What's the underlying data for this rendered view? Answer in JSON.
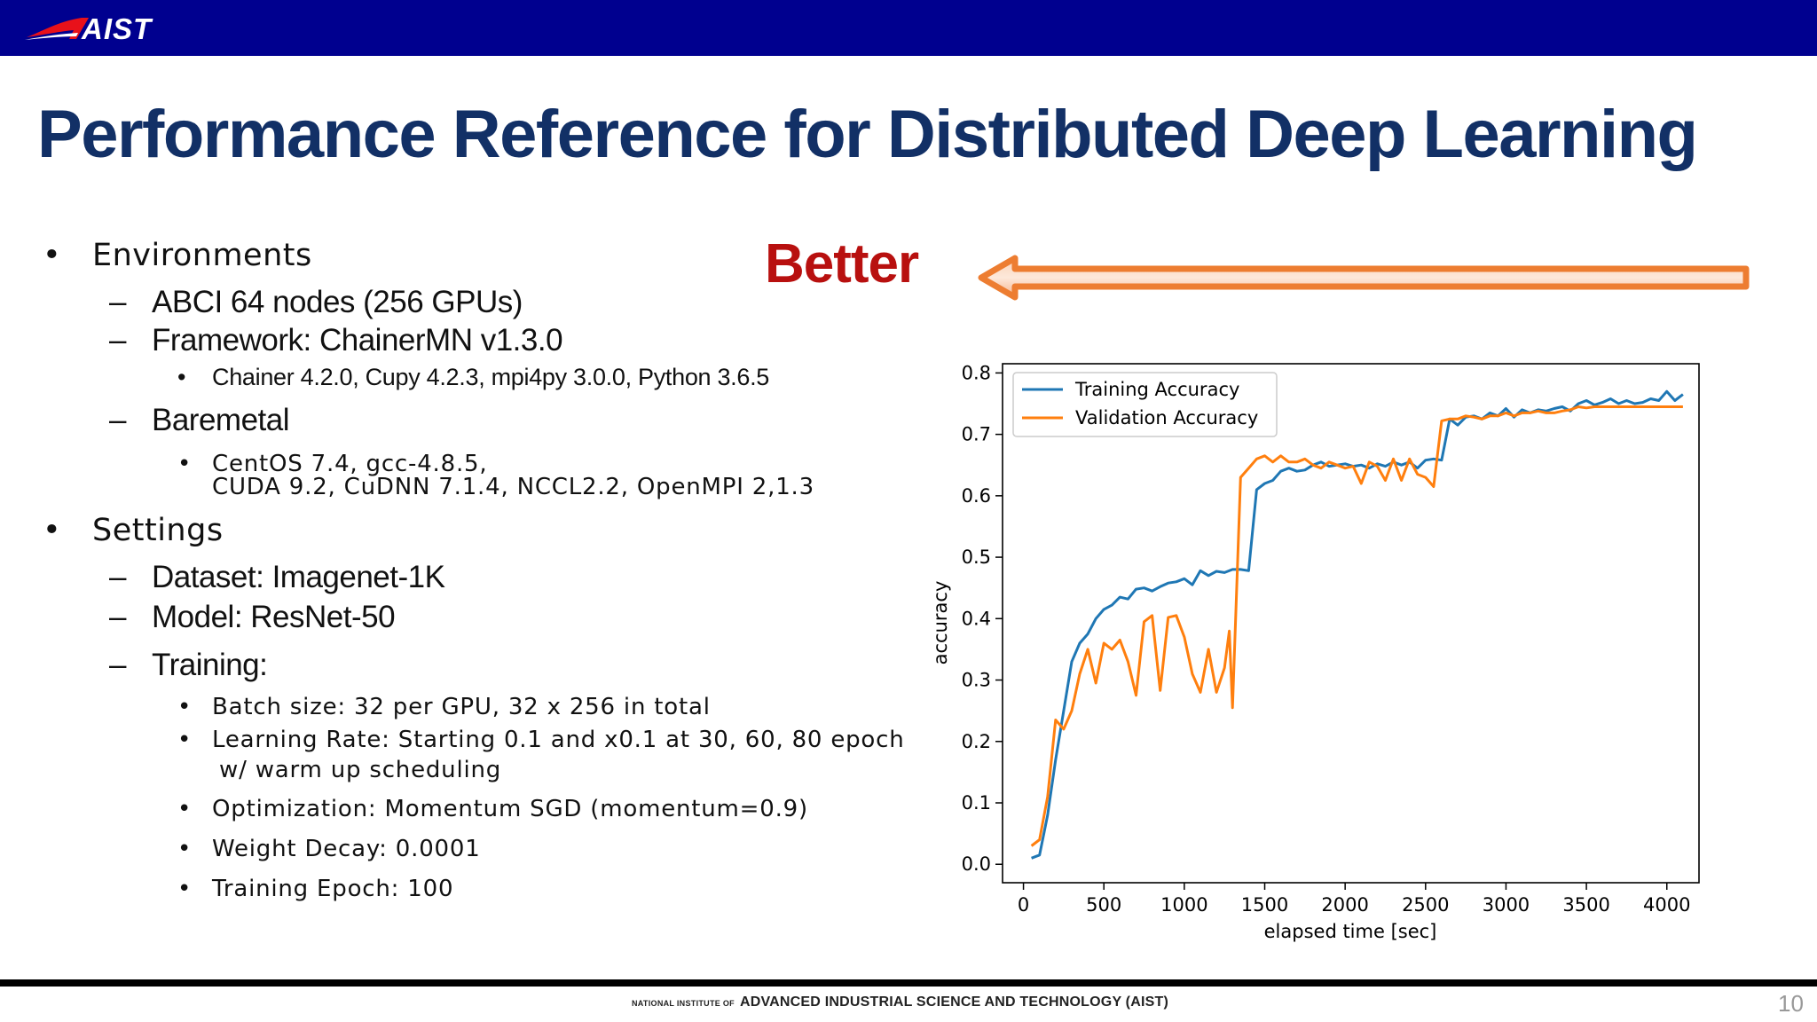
{
  "header": {
    "logo_text": "AIST"
  },
  "slide": {
    "title": "Performance Reference for Distributed Deep Learning"
  },
  "bullets": {
    "environments": "Environments",
    "abci": "ABCI 64 nodes (256 GPUs)",
    "framework": "Framework: ChainerMN v1.3.0",
    "libs": "Chainer 4.2.0, Cupy 4.2.3, mpi4py 3.0.0, Python 3.6.5",
    "baremetal": "Baremetal",
    "centos_1": "CentOS 7.4,  gcc-4.8.5,",
    "centos_2": "CUDA 9.2, CuDNN 7.1.4, NCCL2.2, OpenMPI 2,1.3",
    "settings": "Settings",
    "dataset": "Dataset: Imagenet-1K",
    "model": "Model: ResNet-50",
    "training": "Training:",
    "batch": "Batch size: 32 per GPU, 32 x 256 in total",
    "lr_1": "Learning Rate: Starting 0.1 and x0.1 at  30, 60, 80 epoch",
    "lr_2": "w/ warm up scheduling",
    "optim": "Optimization: Momentum SGD (momentum=0.9)",
    "decay": "Weight Decay: 0.0001",
    "epoch": "Training Epoch: 100",
    "markers": {
      "bullet": "•",
      "dash": "–"
    }
  },
  "annotation": {
    "better": "Better"
  },
  "chart_data": {
    "type": "line",
    "xlabel": "elapsed time [sec]",
    "ylabel": "accuracy",
    "xlim": [
      -130,
      4200
    ],
    "ylim": [
      -0.03,
      0.815
    ],
    "xticks": [
      0,
      500,
      1000,
      1500,
      2000,
      2500,
      3000,
      3500,
      4000
    ],
    "yticks": [
      0.0,
      0.1,
      0.2,
      0.3,
      0.4,
      0.5,
      0.6,
      0.7,
      0.8
    ],
    "grid": false,
    "legend": "top-left",
    "series": [
      {
        "name": "Training Accuracy",
        "color": "#1f77b4",
        "x": [
          50,
          100,
          150,
          200,
          250,
          300,
          350,
          400,
          450,
          500,
          550,
          600,
          650,
          700,
          750,
          800,
          850,
          900,
          950,
          1000,
          1050,
          1100,
          1150,
          1200,
          1250,
          1300,
          1350,
          1400,
          1450,
          1500,
          1550,
          1600,
          1650,
          1700,
          1750,
          1800,
          1850,
          1900,
          1950,
          2000,
          2050,
          2100,
          2150,
          2200,
          2250,
          2300,
          2350,
          2400,
          2450,
          2500,
          2550,
          2600,
          2650,
          2700,
          2750,
          2800,
          2850,
          2900,
          2950,
          3000,
          3050,
          3100,
          3150,
          3200,
          3250,
          3300,
          3350,
          3400,
          3450,
          3500,
          3550,
          3600,
          3650,
          3700,
          3750,
          3800,
          3850,
          3900,
          3950,
          4000,
          4050,
          4100
        ],
        "y": [
          0.01,
          0.015,
          0.08,
          0.17,
          0.25,
          0.33,
          0.36,
          0.375,
          0.4,
          0.415,
          0.422,
          0.435,
          0.432,
          0.448,
          0.45,
          0.445,
          0.452,
          0.458,
          0.46,
          0.465,
          0.455,
          0.478,
          0.47,
          0.477,
          0.475,
          0.48,
          0.48,
          0.478,
          0.61,
          0.62,
          0.625,
          0.64,
          0.645,
          0.64,
          0.642,
          0.65,
          0.655,
          0.648,
          0.65,
          0.652,
          0.648,
          0.65,
          0.645,
          0.652,
          0.648,
          0.655,
          0.65,
          0.655,
          0.645,
          0.658,
          0.66,
          0.658,
          0.725,
          0.715,
          0.728,
          0.73,
          0.725,
          0.735,
          0.73,
          0.742,
          0.728,
          0.74,
          0.735,
          0.74,
          0.738,
          0.742,
          0.745,
          0.738,
          0.75,
          0.755,
          0.748,
          0.752,
          0.758,
          0.75,
          0.755,
          0.75,
          0.752,
          0.758,
          0.755,
          0.77,
          0.755,
          0.765
        ]
      },
      {
        "name": "Validation Accuracy",
        "color": "#ff7f0e",
        "x": [
          50,
          100,
          150,
          200,
          250,
          300,
          350,
          400,
          450,
          500,
          550,
          600,
          650,
          700,
          750,
          800,
          850,
          900,
          950,
          1000,
          1050,
          1100,
          1150,
          1200,
          1250,
          1280,
          1300,
          1350,
          1400,
          1450,
          1500,
          1550,
          1600,
          1650,
          1700,
          1750,
          1800,
          1850,
          1900,
          1950,
          2000,
          2050,
          2100,
          2150,
          2200,
          2250,
          2300,
          2350,
          2400,
          2450,
          2500,
          2550,
          2600,
          2650,
          2700,
          2750,
          2800,
          2850,
          2900,
          2950,
          3000,
          3050,
          3100,
          3150,
          3200,
          3250,
          3300,
          3350,
          3400,
          3450,
          3500,
          3550,
          3600,
          3650,
          3700,
          3750,
          3800,
          3850,
          3900,
          3950,
          4000,
          4050,
          4100
        ],
        "y": [
          0.03,
          0.04,
          0.11,
          0.235,
          0.22,
          0.25,
          0.31,
          0.35,
          0.295,
          0.36,
          0.35,
          0.365,
          0.33,
          0.275,
          0.395,
          0.405,
          0.283,
          0.402,
          0.405,
          0.37,
          0.31,
          0.28,
          0.35,
          0.28,
          0.32,
          0.38,
          0.255,
          0.63,
          0.645,
          0.66,
          0.665,
          0.655,
          0.665,
          0.655,
          0.655,
          0.66,
          0.65,
          0.645,
          0.655,
          0.65,
          0.645,
          0.648,
          0.62,
          0.655,
          0.648,
          0.625,
          0.66,
          0.625,
          0.66,
          0.635,
          0.63,
          0.615,
          0.722,
          0.725,
          0.725,
          0.73,
          0.728,
          0.725,
          0.73,
          0.73,
          0.735,
          0.73,
          0.735,
          0.735,
          0.738,
          0.735,
          0.735,
          0.738,
          0.74,
          0.745,
          0.743,
          0.745,
          0.745,
          0.745,
          0.745,
          0.745,
          0.745,
          0.745,
          0.745,
          0.745,
          0.745,
          0.745,
          0.745
        ]
      }
    ]
  }
}
